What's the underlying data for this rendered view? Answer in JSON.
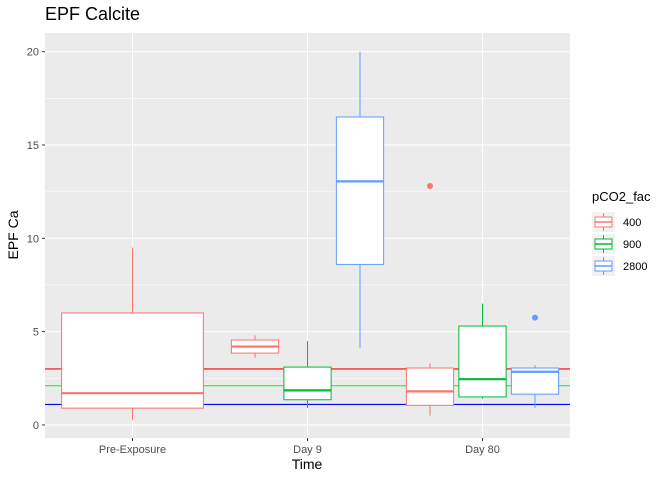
{
  "chart_data": {
    "type": "box",
    "title": "EPF Calcite",
    "xlabel": "Time",
    "ylabel": "EPF Ca",
    "categories": [
      "Pre-Exposure",
      "Day 9",
      "Day 80"
    ],
    "ylim": [
      -0.7,
      21.0
    ],
    "yticks": [
      0,
      5,
      10,
      15,
      20
    ],
    "grid": true,
    "legend": {
      "title": "pCO2_fac",
      "position": "right",
      "entries": [
        {
          "label": "400",
          "color": "#F8766D"
        },
        {
          "label": "900",
          "color": "#00BA38"
        },
        {
          "label": "2800",
          "color": "#619CFF"
        }
      ]
    },
    "reference_lines": [
      {
        "y": 3.0,
        "color": "#FF0000"
      },
      {
        "y": 2.1,
        "color": "#00FF00"
      },
      {
        "y": 1.1,
        "color": "#0000FF"
      }
    ],
    "boxes": [
      {
        "category": "Pre-Exposure",
        "group": "400",
        "slot": 0,
        "n_groups": 1,
        "min": 0.25,
        "q1": 0.9,
        "median": 1.7,
        "q3": 6.0,
        "max": 9.5,
        "outliers": []
      },
      {
        "category": "Day 9",
        "group": "400",
        "slot": 0,
        "n_groups": 3,
        "min": 3.6,
        "q1": 3.85,
        "median": 4.2,
        "q3": 4.55,
        "max": 4.8,
        "outliers": []
      },
      {
        "category": "Day 9",
        "group": "900",
        "slot": 1,
        "n_groups": 3,
        "min": 0.9,
        "q1": 1.35,
        "median": 1.85,
        "q3": 3.1,
        "max": 4.5,
        "outliers": []
      },
      {
        "category": "Day 9",
        "group": "2800",
        "slot": 2,
        "n_groups": 3,
        "min": 4.1,
        "q1": 8.6,
        "median": 13.05,
        "q3": 16.5,
        "max": 20.0,
        "outliers": []
      },
      {
        "category": "Day 80",
        "group": "400",
        "slot": 0,
        "n_groups": 3,
        "min": 0.5,
        "q1": 1.05,
        "median": 1.8,
        "q3": 3.05,
        "max": 3.3,
        "outliers": [
          12.8
        ]
      },
      {
        "category": "Day 80",
        "group": "900",
        "slot": 1,
        "n_groups": 3,
        "min": 1.4,
        "q1": 1.5,
        "median": 2.45,
        "q3": 5.3,
        "max": 6.5,
        "outliers": []
      },
      {
        "category": "Day 80",
        "group": "2800",
        "slot": 2,
        "n_groups": 3,
        "min": 0.9,
        "q1": 1.65,
        "median": 2.85,
        "q3": 3.05,
        "max": 3.2,
        "outliers": [
          5.75
        ]
      }
    ]
  }
}
